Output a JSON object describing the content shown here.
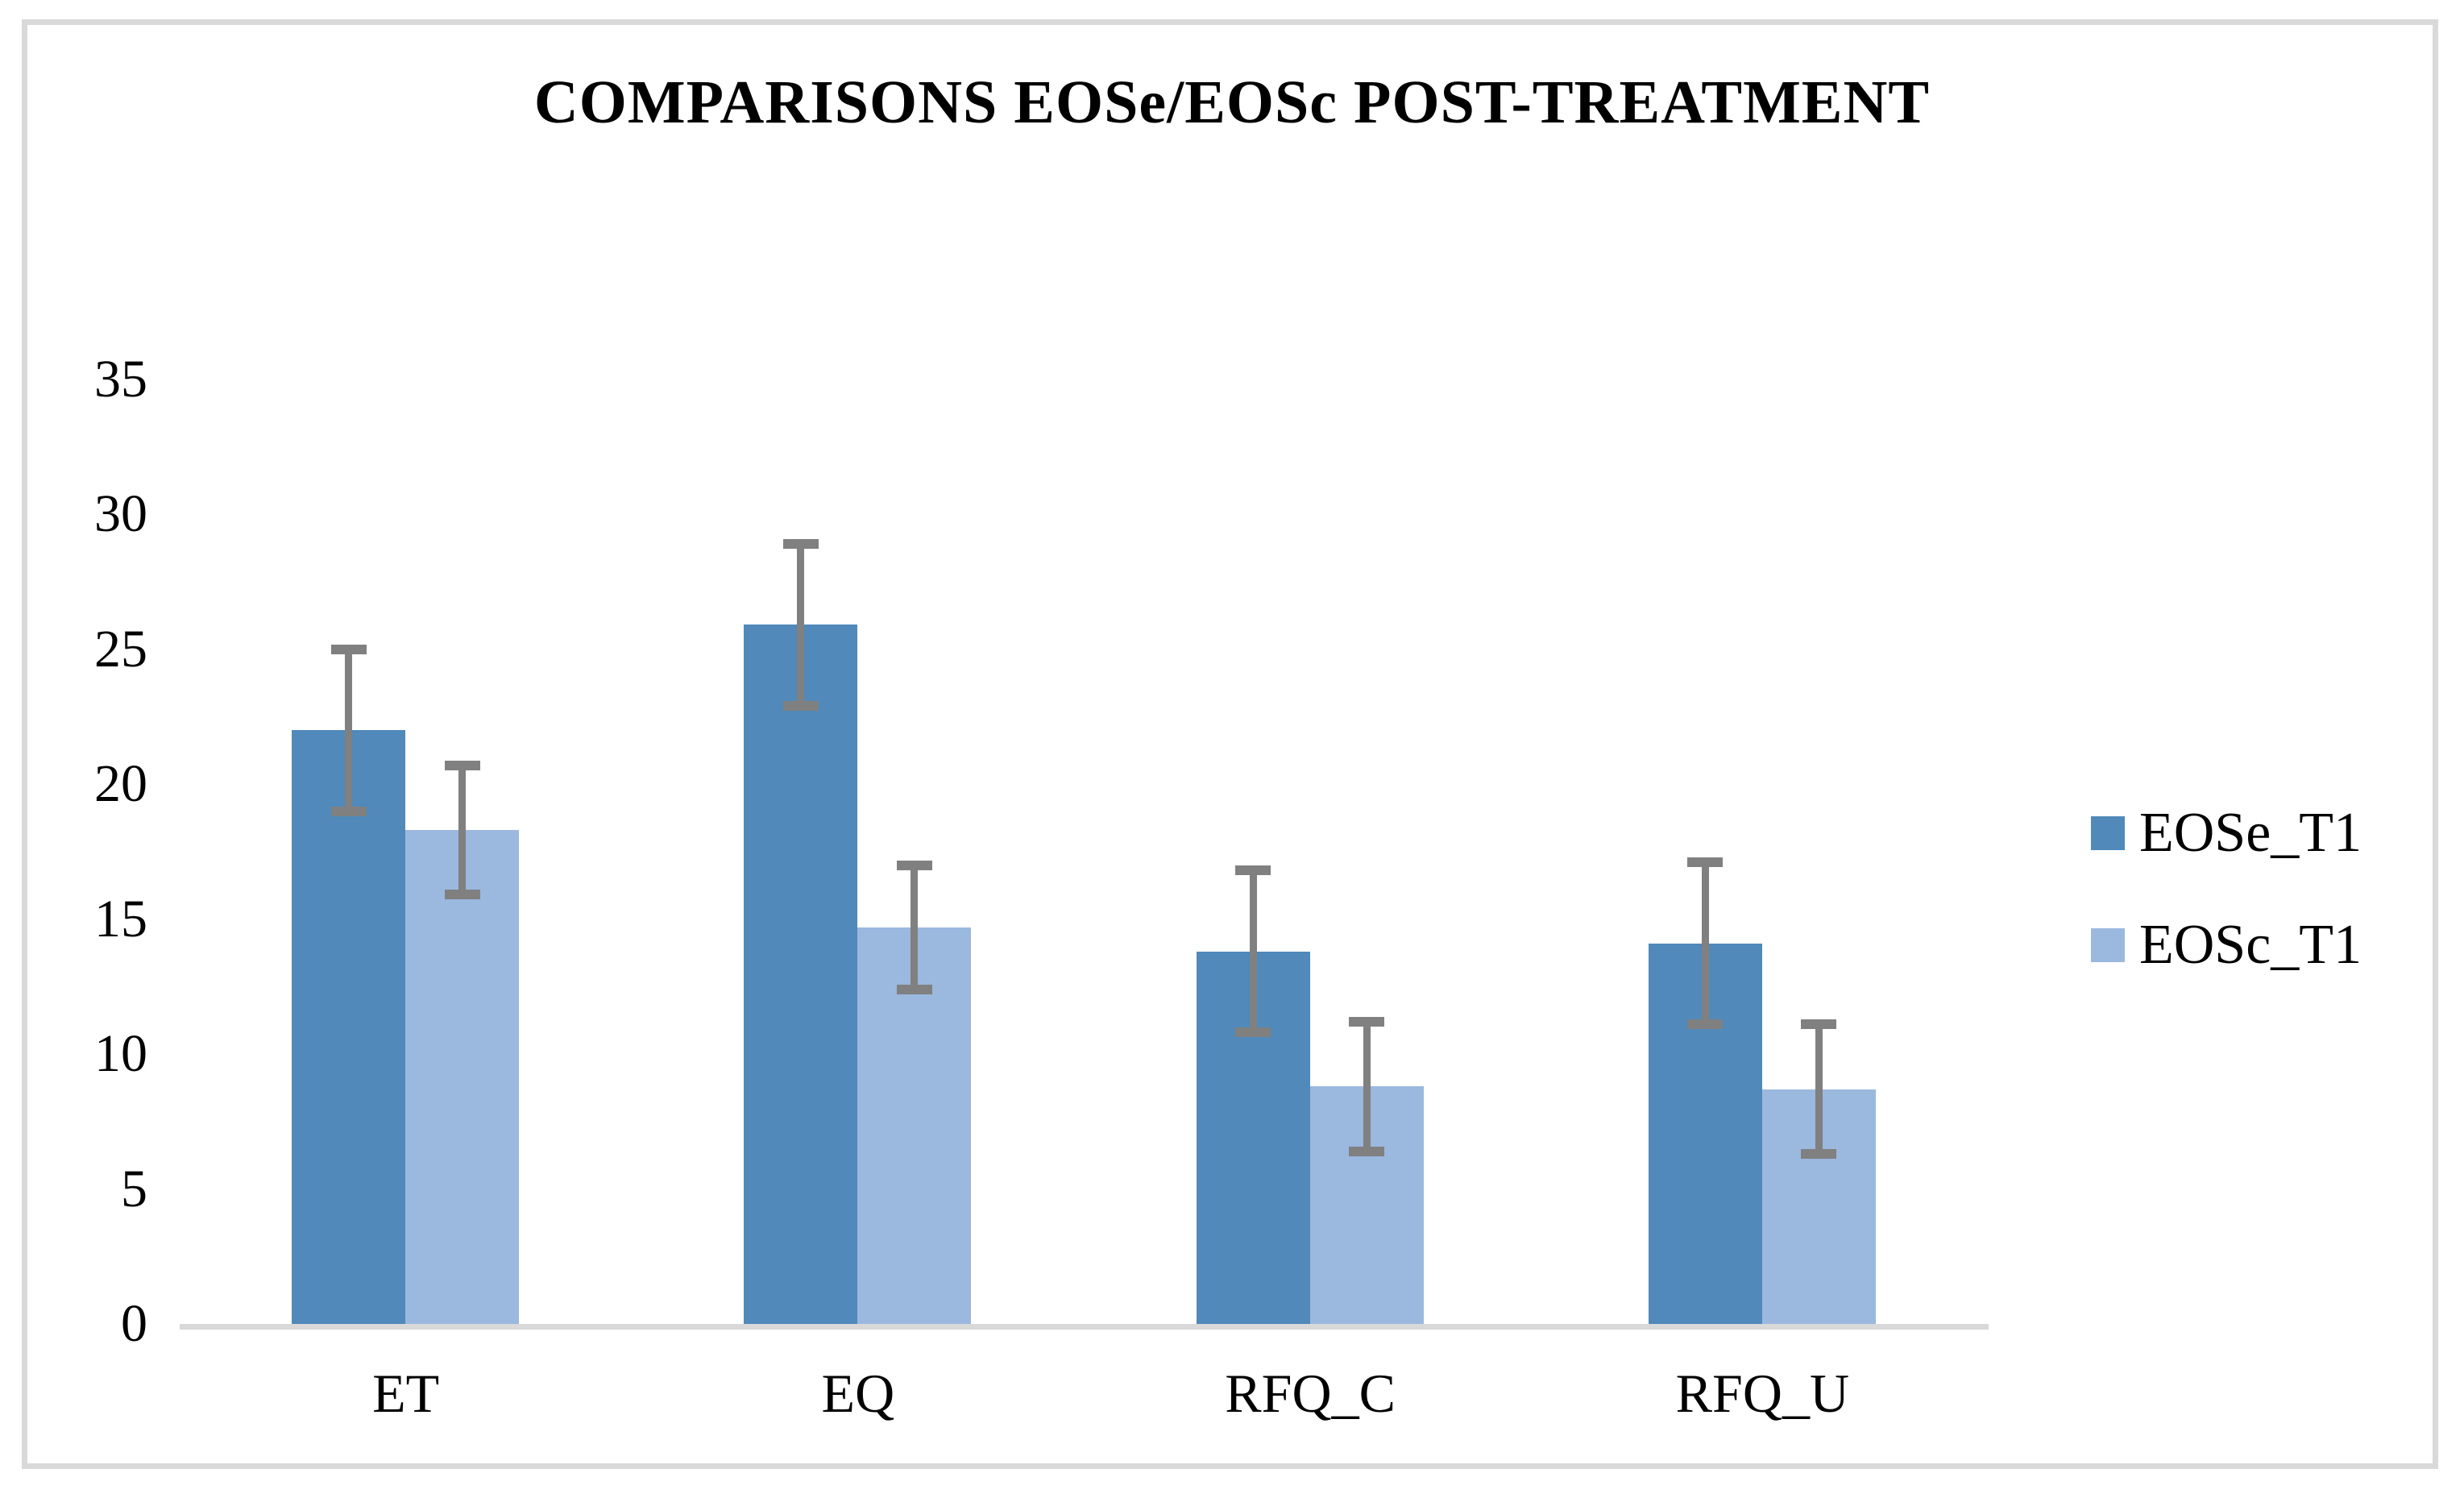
{
  "chart_data": {
    "type": "bar",
    "title": "COMPARISONS EOSe/EOSc POST-TREATMENT",
    "categories": [
      "ET",
      "EQ",
      "RFQ_C",
      "RFQ_U"
    ],
    "series": [
      {
        "name": "EOSe_T1",
        "color": "#5089BA",
        "values": [
          22.0,
          25.9,
          13.8,
          14.1
        ],
        "errors": [
          3.0,
          3.0,
          3.0,
          3.0
        ]
      },
      {
        "name": "EOSc_T1",
        "color": "#9BB8DF",
        "values": [
          18.3,
          14.7,
          8.8,
          8.7
        ],
        "errors": [
          2.4,
          2.3,
          2.4,
          2.4
        ]
      }
    ],
    "ylim": [
      0,
      35
    ],
    "ytick_step": 5,
    "yticks": [
      "0",
      "5",
      "10",
      "15",
      "20",
      "25",
      "30",
      "35"
    ],
    "xlabel": "",
    "ylabel": "",
    "grid": false,
    "legend_position": "right",
    "error_bars": true,
    "error_bar_color": "#808080",
    "axis_line_color": "#D9D9D9",
    "frame_border_color": "#D9D9D9",
    "background_color": "#FFFFFF"
  }
}
